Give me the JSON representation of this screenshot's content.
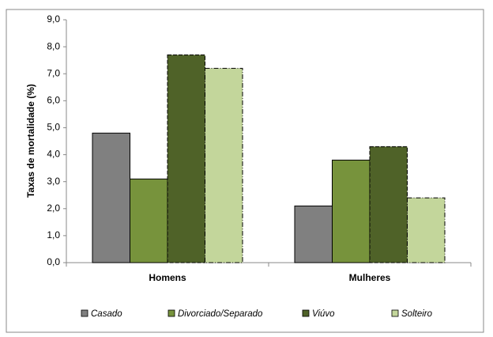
{
  "chart_data": {
    "type": "bar",
    "y_label": "Taxas de mortalidade (%)",
    "categories": [
      "Homens",
      "Mulheres"
    ],
    "series": [
      {
        "name": "Casado",
        "color": "#808080",
        "values": [
          4.8,
          2.1
        ]
      },
      {
        "name": "Divorciado/Separado",
        "color": "#77933c",
        "values": [
          3.1,
          3.8
        ]
      },
      {
        "name": "Viúvo",
        "color": "#4f6228",
        "values": [
          7.7,
          4.3
        ]
      },
      {
        "name": "Solteiro",
        "color": "#c3d69b",
        "values": [
          7.2,
          2.4
        ]
      }
    ],
    "ylim": [
      0,
      9
    ],
    "yticks": [
      {
        "value": 0,
        "label": "0,0"
      },
      {
        "value": 1,
        "label": "1,0"
      },
      {
        "value": 2,
        "label": "2,0"
      },
      {
        "value": 3,
        "label": "3,0"
      },
      {
        "value": 4,
        "label": "4,0"
      },
      {
        "value": 5,
        "label": "5,0"
      },
      {
        "value": 6,
        "label": "6,0"
      },
      {
        "value": 7,
        "label": "7,0"
      },
      {
        "value": 8,
        "label": "8,0"
      },
      {
        "value": 9,
        "label": "9,0"
      }
    ],
    "grid": false,
    "legend": "bottom"
  }
}
